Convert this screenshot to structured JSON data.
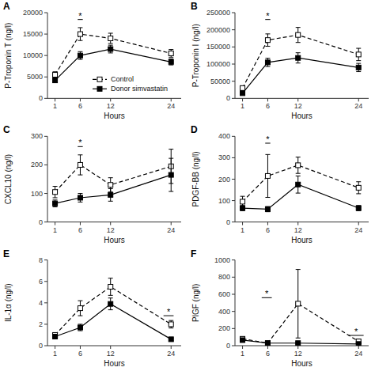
{
  "chart_data": [
    {
      "type": "line",
      "title": "A",
      "xlabel": "Hours",
      "ylabel": "P-Troponin T (ng/l)",
      "x": [
        1,
        6,
        12,
        24
      ],
      "xlim": [
        -0.5,
        26
      ],
      "xticks": [
        1,
        6,
        12,
        24
      ],
      "ylim": [
        0,
        20000
      ],
      "yticks": [
        0,
        5000,
        10000,
        15000,
        20000
      ],
      "grid": false,
      "legend": "lower right",
      "series": [
        {
          "name": "Control",
          "color": "#000000",
          "marker": "open-square",
          "line_style": "dashed",
          "values": [
            5500,
            15000,
            14000,
            10500
          ],
          "errors": [
            700,
            1500,
            1200,
            900
          ]
        },
        {
          "name": "Donor simvastatin",
          "color": "#000000",
          "marker": "square",
          "line_style": "solid",
          "values": [
            4200,
            10000,
            11500,
            8500
          ],
          "errors": [
            500,
            900,
            900,
            700
          ]
        }
      ],
      "annotations": [
        {
          "text": "*",
          "x": [
            5.5,
            6.5
          ],
          "y": 18400
        }
      ]
    },
    {
      "type": "line",
      "title": "B",
      "xlabel": "Hours",
      "ylabel": "P-Troponin I (ng/l)",
      "x": [
        1,
        6,
        12,
        24
      ],
      "xlim": [
        -0.5,
        26
      ],
      "xticks": [
        1,
        6,
        12,
        24
      ],
      "ylim": [
        0,
        250000
      ],
      "yticks": [
        0,
        50000,
        100000,
        150000,
        200000,
        250000
      ],
      "grid": false,
      "series": [
        {
          "name": "Control",
          "color": "#000000",
          "marker": "open-square",
          "line_style": "dashed",
          "values": [
            30000,
            170000,
            185000,
            128000
          ],
          "errors": [
            5000,
            18000,
            22000,
            18000
          ]
        },
        {
          "name": "Donor simvastatin",
          "color": "#000000",
          "marker": "square",
          "line_style": "solid",
          "values": [
            15000,
            105000,
            118000,
            90000
          ],
          "errors": [
            3000,
            12000,
            15000,
            12000
          ]
        }
      ],
      "annotations": [
        {
          "text": "*",
          "x": [
            5.5,
            6.5
          ],
          "y": 230000
        }
      ]
    },
    {
      "type": "line",
      "title": "C",
      "xlabel": "Hours",
      "ylabel": "CXCL10 (ng/l)",
      "x": [
        1,
        6,
        12,
        24
      ],
      "xlim": [
        -0.5,
        26
      ],
      "xticks": [
        1,
        6,
        12,
        24
      ],
      "ylim": [
        0,
        300
      ],
      "yticks": [
        0,
        100,
        200,
        300
      ],
      "grid": false,
      "series": [
        {
          "name": "Control",
          "color": "#000000",
          "marker": "open-square",
          "line_style": "dashed",
          "values": [
            105,
            200,
            130,
            195
          ],
          "errors": [
            20,
            35,
            25,
            60
          ]
        },
        {
          "name": "Donor simvastatin",
          "color": "#000000",
          "marker": "square",
          "line_style": "solid",
          "values": [
            65,
            85,
            95,
            165
          ],
          "errors": [
            12,
            15,
            22,
            58
          ]
        }
      ],
      "annotations": [
        {
          "text": "*",
          "x": [
            5.5,
            6.5
          ],
          "y": 264
        }
      ]
    },
    {
      "type": "line",
      "title": "D",
      "xlabel": "Hours",
      "ylabel": "PDGF-BB (ng/l)",
      "x": [
        1,
        6,
        12,
        24
      ],
      "xlim": [
        -0.5,
        26
      ],
      "xticks": [
        1,
        6,
        12,
        24
      ],
      "ylim": [
        0,
        400
      ],
      "yticks": [
        0,
        100,
        200,
        300,
        400
      ],
      "grid": false,
      "series": [
        {
          "name": "Control",
          "color": "#000000",
          "marker": "open-square",
          "line_style": "dashed",
          "values": [
            95,
            215,
            265,
            160
          ],
          "errors": [
            25,
            100,
            38,
            28
          ]
        },
        {
          "name": "Donor simvastatin",
          "color": "#000000",
          "marker": "square",
          "line_style": "solid",
          "values": [
            65,
            60,
            175,
            65
          ],
          "errors": [
            12,
            12,
            40,
            12
          ]
        }
      ],
      "annotations": [
        {
          "text": "*",
          "x": [
            5.5,
            6.5
          ],
          "y": 368
        }
      ]
    },
    {
      "type": "line",
      "title": "E",
      "xlabel": "Hours",
      "ylabel": "IL-1α (ng/l)",
      "x": [
        1,
        6,
        12,
        24
      ],
      "xlim": [
        -0.5,
        26
      ],
      "xticks": [
        1,
        6,
        12,
        24
      ],
      "ylim": [
        0,
        8
      ],
      "yticks": [
        0,
        2,
        4,
        6,
        8
      ],
      "grid": false,
      "series": [
        {
          "name": "Control",
          "color": "#000000",
          "marker": "open-square",
          "line_style": "dashed",
          "values": [
            1.0,
            3.5,
            5.5,
            2.0
          ],
          "errors": [
            0.2,
            0.7,
            0.8,
            0.35
          ]
        },
        {
          "name": "Donor simvastatin",
          "color": "#000000",
          "marker": "square",
          "line_style": "solid",
          "values": [
            0.85,
            1.7,
            3.9,
            0.6
          ],
          "errors": [
            0.12,
            0.3,
            0.55,
            0.1
          ]
        }
      ],
      "annotations": [
        {
          "text": "*",
          "x": [
            22.5,
            24.5
          ],
          "y": 2.8
        }
      ]
    },
    {
      "type": "line",
      "title": "F",
      "xlabel": "Hours",
      "ylabel": "PlGF (ng/l)",
      "x": [
        1,
        6,
        12,
        24
      ],
      "xlim": [
        -0.5,
        26
      ],
      "xticks": [
        1,
        6,
        12,
        24
      ],
      "ylim": [
        0,
        1000
      ],
      "yticks": [
        0,
        200,
        400,
        600,
        800,
        1000
      ],
      "grid": false,
      "series": [
        {
          "name": "Control",
          "color": "#000000",
          "marker": "open-square",
          "line_style": "dashed",
          "values": [
            80,
            30,
            490,
            50
          ],
          "errors": [
            25,
            12,
            400,
            25
          ]
        },
        {
          "name": "Donor simvastatin",
          "color": "#000000",
          "marker": "square",
          "line_style": "solid",
          "values": [
            65,
            30,
            30,
            20
          ],
          "errors": [
            15,
            10,
            10,
            5
          ]
        }
      ],
      "annotations": [
        {
          "text": "*",
          "x": [
            4.8,
            6.8
          ],
          "y": 560
        },
        {
          "text": "*",
          "x": [
            22.0,
            25.0
          ],
          "y": 120
        }
      ]
    }
  ]
}
